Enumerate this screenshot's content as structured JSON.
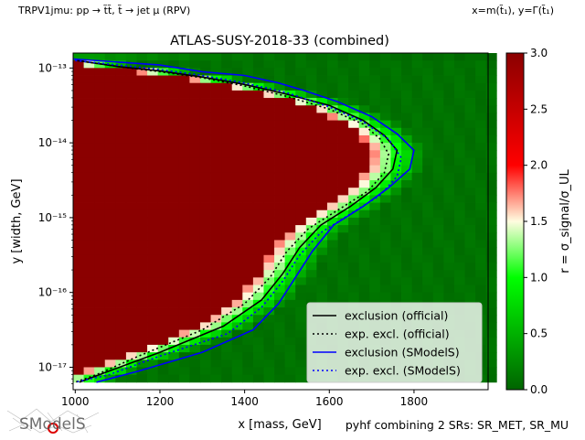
{
  "header": {
    "left_label": "TRPV1jmu: pp → t̃t̃, t̃ → jet μ (RPV)",
    "right_label": "x=m(t̃₁), y=Γ(t̃₁)",
    "footer_right": "pyhf combining 2 SRs: SR_MET, SR_MU"
  },
  "logo": {
    "text": "SModelS"
  },
  "chart_data": {
    "type": "heatmap",
    "title": "ATLAS-SUSY-2018-33 (combined)",
    "xlabel": "x [mass, GeV]",
    "ylabel": "y [width, GeV]",
    "xlim": [
      995,
      1975
    ],
    "ylim_log10": [
      -17.3,
      -12.8
    ],
    "x_ticks": [
      1000,
      1200,
      1400,
      1600,
      1800
    ],
    "x_tick_labels": [
      "1000",
      "1200",
      "1400",
      "1600",
      "1800"
    ],
    "y_ticks_log10": [
      -13,
      -14,
      -15,
      -16,
      -17
    ],
    "y_tick_labels": [
      "10⁻¹³",
      "10⁻¹⁴",
      "10⁻¹⁵",
      "10⁻¹⁶",
      "10⁻¹⁷"
    ],
    "colorbar": {
      "label": "r = σ_signal/σ_UL",
      "range": [
        0,
        3.0
      ],
      "ticks": [
        0.0,
        0.5,
        1.0,
        1.5,
        2.0,
        2.5,
        3.0
      ],
      "tick_labels": [
        "0.0",
        "0.5",
        "1.0",
        "1.5",
        "2.0",
        "2.5",
        "3.0"
      ],
      "colormap": [
        "#006400",
        "#00ff00",
        "#fffce0",
        "#ff0000",
        "#8b0000"
      ]
    },
    "grid": false,
    "legend_position": "lower-right",
    "series": [
      {
        "name": "exclusion (official)",
        "color": "#000000",
        "style": "solid",
        "points": [
          [
            1005,
            -12.9
          ],
          [
            1100,
            -12.98
          ],
          [
            1200,
            -13.04
          ],
          [
            1300,
            -13.12
          ],
          [
            1400,
            -13.22
          ],
          [
            1500,
            -13.35
          ],
          [
            1600,
            -13.5
          ],
          [
            1680,
            -13.7
          ],
          [
            1730,
            -13.9
          ],
          [
            1760,
            -14.1
          ],
          [
            1750,
            -14.35
          ],
          [
            1710,
            -14.6
          ],
          [
            1650,
            -14.85
          ],
          [
            1580,
            -15.1
          ],
          [
            1530,
            -15.4
          ],
          [
            1490,
            -15.75
          ],
          [
            1440,
            -16.1
          ],
          [
            1350,
            -16.45
          ],
          [
            1200,
            -16.8
          ],
          [
            1080,
            -17.05
          ],
          [
            1010,
            -17.2
          ]
        ]
      },
      {
        "name": "exp. excl. (official)",
        "color": "#000000",
        "style": "dotted",
        "points": [
          [
            1005,
            -12.9
          ],
          [
            1100,
            -12.98
          ],
          [
            1200,
            -13.05
          ],
          [
            1300,
            -13.13
          ],
          [
            1400,
            -13.24
          ],
          [
            1500,
            -13.38
          ],
          [
            1600,
            -13.55
          ],
          [
            1680,
            -13.75
          ],
          [
            1720,
            -13.95
          ],
          [
            1740,
            -14.15
          ],
          [
            1730,
            -14.4
          ],
          [
            1690,
            -14.65
          ],
          [
            1620,
            -14.9
          ],
          [
            1550,
            -15.15
          ],
          [
            1500,
            -15.45
          ],
          [
            1460,
            -15.8
          ],
          [
            1400,
            -16.15
          ],
          [
            1300,
            -16.5
          ],
          [
            1150,
            -16.85
          ],
          [
            1050,
            -17.1
          ],
          [
            1000,
            -17.2
          ]
        ]
      },
      {
        "name": "exclusion (SModelS)",
        "color": "#0000ff",
        "style": "solid",
        "points": [
          [
            995,
            -12.88
          ],
          [
            1100,
            -12.92
          ],
          [
            1200,
            -12.96
          ],
          [
            1300,
            -13.05
          ],
          [
            1400,
            -13.1
          ],
          [
            1480,
            -13.2
          ],
          [
            1540,
            -13.3
          ],
          [
            1620,
            -13.45
          ],
          [
            1700,
            -13.65
          ],
          [
            1760,
            -13.88
          ],
          [
            1800,
            -14.1
          ],
          [
            1790,
            -14.35
          ],
          [
            1740,
            -14.6
          ],
          [
            1680,
            -14.85
          ],
          [
            1610,
            -15.1
          ],
          [
            1560,
            -15.45
          ],
          [
            1520,
            -15.8
          ],
          [
            1480,
            -16.15
          ],
          [
            1420,
            -16.5
          ],
          [
            1300,
            -16.8
          ],
          [
            1150,
            -17.05
          ],
          [
            1050,
            -17.2
          ]
        ]
      },
      {
        "name": "exp. excl. (SModelS)",
        "color": "#0000ff",
        "style": "dotted",
        "points": [
          [
            1000,
            -12.9
          ],
          [
            1100,
            -12.96
          ],
          [
            1200,
            -13.02
          ],
          [
            1300,
            -13.1
          ],
          [
            1400,
            -13.2
          ],
          [
            1500,
            -13.33
          ],
          [
            1600,
            -13.52
          ],
          [
            1680,
            -13.72
          ],
          [
            1740,
            -13.95
          ],
          [
            1770,
            -14.2
          ],
          [
            1760,
            -14.45
          ],
          [
            1720,
            -14.7
          ],
          [
            1650,
            -14.95
          ],
          [
            1580,
            -15.2
          ],
          [
            1530,
            -15.5
          ],
          [
            1490,
            -15.85
          ],
          [
            1440,
            -16.2
          ],
          [
            1360,
            -16.55
          ],
          [
            1200,
            -16.85
          ],
          [
            1080,
            -17.1
          ],
          [
            1000,
            -17.2
          ]
        ]
      }
    ]
  }
}
